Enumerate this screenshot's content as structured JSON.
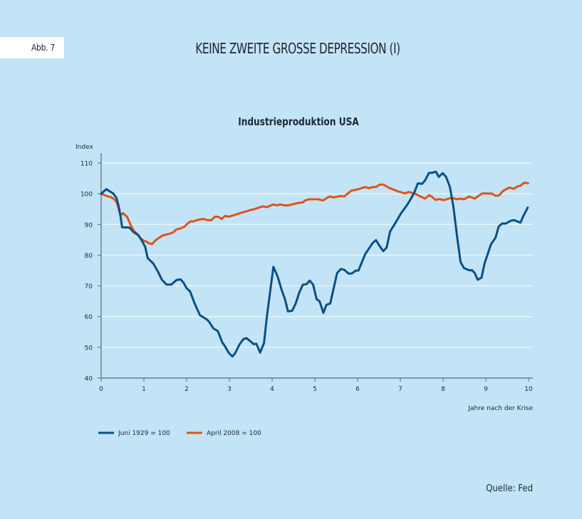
{
  "figure_label": "Abb. 7",
  "headline": "KEINE ZWEITE GROSSE DEPRESSION (I)",
  "source": "Quelle: Fed",
  "chart_data": {
    "type": "line",
    "title": "Industrieproduktion USA",
    "ylabel": "Index",
    "xlabel": "Jahre nach der Krise",
    "xlim": [
      0,
      10
    ],
    "ylim": [
      40,
      110
    ],
    "xticks": [
      0,
      1,
      2,
      3,
      4,
      5,
      6,
      7,
      8,
      9,
      10
    ],
    "yticks": [
      40,
      50,
      60,
      70,
      80,
      90,
      100,
      110
    ],
    "grid": "horizontal",
    "legend": "bottom-left",
    "series": [
      {
        "name": "Juni 1929 = 100",
        "color": "#0b4f84",
        "x": [
          0,
          0.12,
          0.19,
          0.29,
          0.36,
          0.41,
          0.45,
          0.49,
          0.66,
          0.76,
          0.88,
          0.97,
          1.03,
          1.09,
          1.22,
          1.33,
          1.42,
          1.53,
          1.64,
          1.76,
          1.86,
          1.93,
          2.0,
          2.08,
          2.19,
          2.31,
          2.47,
          2.52,
          2.63,
          2.73,
          2.83,
          2.9,
          2.98,
          3.07,
          3.13,
          3.24,
          3.33,
          3.4,
          3.49,
          3.57,
          3.63,
          3.72,
          3.81,
          3.88,
          4.03,
          4.13,
          4.22,
          4.3,
          4.37,
          4.47,
          4.55,
          4.64,
          4.72,
          4.8,
          4.88,
          4.96,
          5.04,
          5.11,
          5.2,
          5.27,
          5.36,
          5.44,
          5.52,
          5.61,
          5.69,
          5.79,
          5.86,
          5.96,
          6.02,
          6.18,
          6.35,
          6.43,
          6.51,
          6.6,
          6.68,
          6.76,
          6.88,
          7.02,
          7.16,
          7.24,
          7.33,
          7.41,
          7.51,
          7.58,
          7.67,
          7.74,
          7.83,
          7.9,
          7.99,
          8.07,
          8.16,
          8.24,
          8.33,
          8.41,
          8.49,
          8.61,
          8.68,
          8.74,
          8.81,
          8.9,
          8.97,
          9.12,
          9.23,
          9.3,
          9.38,
          9.47,
          9.58,
          9.66,
          9.81,
          9.88,
          9.98
        ],
        "y": [
          100,
          101.5,
          100.9,
          100,
          98.6,
          95.9,
          93,
          89.1,
          89,
          87.5,
          86.4,
          84.3,
          82.7,
          79,
          77.3,
          74.6,
          72,
          70.4,
          70.4,
          71.9,
          72.1,
          71,
          69.2,
          68.2,
          64.2,
          60.5,
          59.1,
          58.4,
          56.1,
          55.3,
          51.7,
          50.3,
          48.3,
          47,
          48,
          51,
          52.7,
          53,
          52,
          51,
          51.2,
          48.3,
          51.4,
          60.3,
          76.2,
          73,
          68.8,
          65.7,
          61.7,
          61.9,
          64.2,
          68,
          70.4,
          70.5,
          71.7,
          70.4,
          65.7,
          65,
          61.2,
          63.8,
          64.3,
          69.2,
          74.2,
          75.5,
          75.2,
          74,
          74,
          75,
          75,
          80.4,
          83.9,
          84.9,
          83.1,
          81.3,
          82.5,
          87.7,
          90.4,
          93.7,
          96.4,
          98.2,
          100.5,
          103.4,
          103.2,
          104.4,
          106.8,
          106.8,
          107.2,
          105.5,
          106.7,
          105.5,
          102.2,
          95.9,
          85.8,
          77.7,
          75.8,
          75.1,
          75.1,
          74.2,
          72,
          72.7,
          77.3,
          83.5,
          85.8,
          89.3,
          90.3,
          90.3,
          91.2,
          91.4,
          90.6,
          92.8,
          95.5
        ]
      },
      {
        "name": "April 2008 = 100",
        "color": "#e0521c",
        "x": [
          0,
          0.13,
          0.24,
          0.31,
          0.37,
          0.41,
          0.45,
          0.51,
          0.61,
          0.69,
          0.76,
          0.84,
          0.91,
          0.99,
          1.07,
          1.11,
          1.19,
          1.26,
          1.36,
          1.44,
          1.55,
          1.63,
          1.69,
          1.76,
          1.86,
          1.96,
          2.02,
          2.09,
          2.16,
          2.24,
          2.38,
          2.49,
          2.58,
          2.66,
          2.74,
          2.82,
          2.9,
          2.98,
          3.08,
          3.19,
          3.3,
          3.41,
          3.49,
          3.57,
          3.69,
          3.79,
          3.87,
          3.94,
          4.02,
          4.11,
          4.19,
          4.3,
          4.38,
          4.49,
          4.61,
          4.72,
          4.77,
          4.86,
          5.08,
          5.19,
          5.3,
          5.36,
          5.44,
          5.61,
          5.69,
          5.85,
          5.97,
          6.18,
          6.27,
          6.35,
          6.43,
          6.52,
          6.6,
          6.74,
          6.94,
          7.11,
          7.19,
          7.36,
          7.47,
          7.58,
          7.68,
          7.83,
          7.91,
          8.01,
          8.19,
          8.33,
          8.41,
          8.49,
          8.61,
          8.74,
          8.91,
          9.13,
          9.24,
          9.31,
          9.41,
          9.55,
          9.66,
          9.74,
          9.81,
          9.9,
          9.99
        ],
        "y": [
          100,
          99.3,
          98.8,
          98.2,
          97,
          95.1,
          92.9,
          93.7,
          92.4,
          89.8,
          88,
          87,
          85.6,
          84.8,
          84.3,
          83.9,
          83.6,
          84.7,
          85.7,
          86.4,
          86.8,
          87.1,
          87.5,
          88.4,
          88.7,
          89.4,
          90.3,
          91,
          91,
          91.4,
          91.8,
          91.4,
          91.4,
          92.5,
          92.5,
          91.8,
          92.8,
          92.5,
          92.9,
          93.4,
          93.9,
          94.3,
          94.7,
          94.9,
          95.5,
          95.9,
          95.6,
          96,
          96.5,
          96.2,
          96.5,
          96.2,
          96.2,
          96.6,
          97,
          97.2,
          97.8,
          98.2,
          98.2,
          97.8,
          98.8,
          99.1,
          98.8,
          99.3,
          99.1,
          101,
          101.3,
          102.2,
          101.8,
          102.2,
          102.2,
          103,
          103,
          101.9,
          100.8,
          100.1,
          100.6,
          99.9,
          99.1,
          98.4,
          99.6,
          98,
          98.3,
          97.9,
          98.7,
          98.2,
          98.4,
          98.2,
          99.1,
          98.4,
          100.1,
          100.1,
          99.3,
          99.5,
          101,
          102,
          101.6,
          102.4,
          102.6,
          103.6,
          103.4
        ]
      }
    ]
  }
}
